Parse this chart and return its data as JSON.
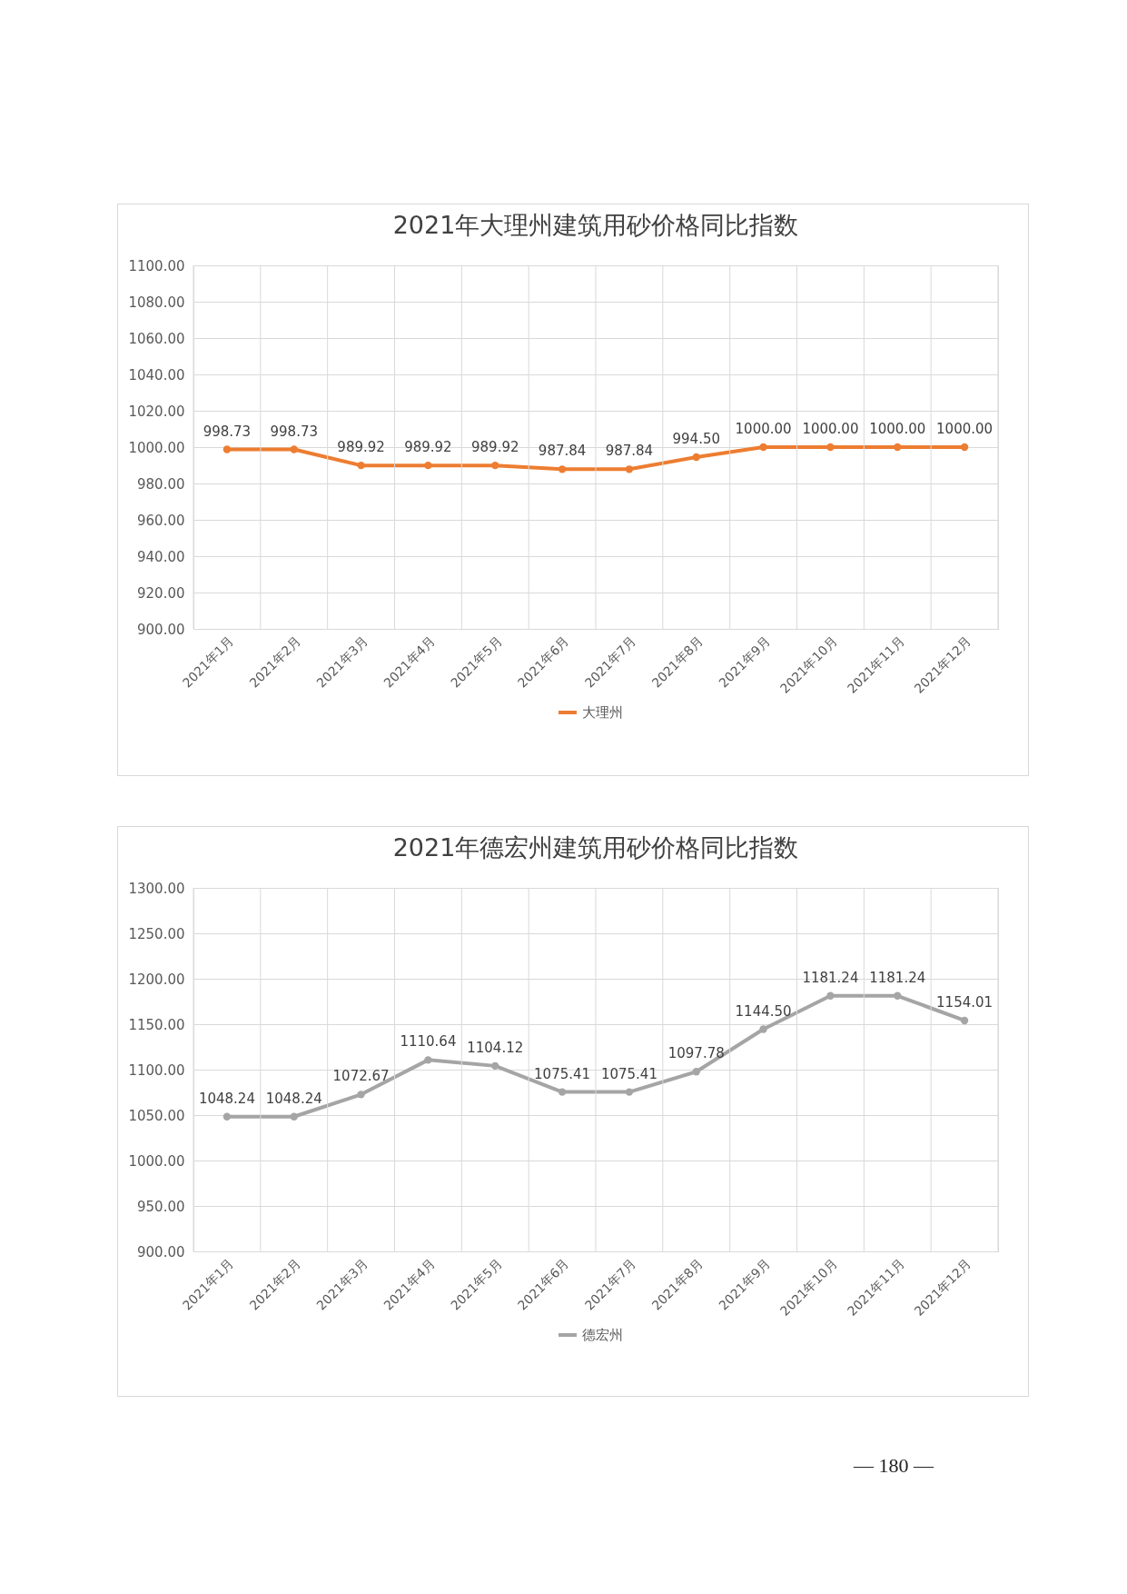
{
  "chart_data": [
    {
      "type": "line",
      "title": "2021年大理州建筑用砂价格同比指数",
      "categories": [
        "2021年1月",
        "2021年2月",
        "2021年3月",
        "2021年4月",
        "2021年5月",
        "2021年6月",
        "2021年7月",
        "2021年8月",
        "2021年9月",
        "2021年10月",
        "2021年11月",
        "2021年12月"
      ],
      "series": [
        {
          "name": "大理州",
          "color": "#ed7d31",
          "values": [
            998.73,
            998.73,
            989.92,
            989.92,
            989.92,
            987.84,
            987.84,
            994.5,
            1000,
            1000,
            1000,
            1000
          ],
          "value_labels": [
            "998.73",
            "998.73",
            "989.92",
            "989.92",
            "989.92",
            "987.84",
            "987.84",
            "994.50",
            "1000.00",
            "1000.00",
            "1000.00",
            "1000.00"
          ]
        }
      ],
      "ylim": [
        900,
        1100
      ],
      "yticks": [
        {
          "value": 900,
          "label": "900.00"
        },
        {
          "value": 920,
          "label": "920.00"
        },
        {
          "value": 940,
          "label": "940.00"
        },
        {
          "value": 960,
          "label": "960.00"
        },
        {
          "value": 980,
          "label": "980.00"
        },
        {
          "value": 1000,
          "label": "1000.00"
        },
        {
          "value": 1020,
          "label": "1020.00"
        },
        {
          "value": 1040,
          "label": "1040.00"
        },
        {
          "value": 1060,
          "label": "1060.00"
        },
        {
          "value": 1080,
          "label": "1080.00"
        },
        {
          "value": 1100,
          "label": "1100.00"
        }
      ],
      "grid": true,
      "legend": "bottom",
      "marker": "circle"
    },
    {
      "type": "line",
      "title": "2021年德宏州建筑用砂价格同比指数",
      "categories": [
        "2021年1月",
        "2021年2月",
        "2021年3月",
        "2021年4月",
        "2021年5月",
        "2021年6月",
        "2021年7月",
        "2021年8月",
        "2021年9月",
        "2021年10月",
        "2021年11月",
        "2021年12月"
      ],
      "series": [
        {
          "name": "德宏州",
          "color": "#a5a5a5",
          "values": [
            1048.24,
            1048.24,
            1072.67,
            1110.64,
            1104.12,
            1075.41,
            1075.41,
            1097.78,
            1144.5,
            1181.24,
            1181.24,
            1154.01
          ],
          "value_labels": [
            "1048.24",
            "1048.24",
            "1072.67",
            "1110.64",
            "1104.12",
            "1075.41",
            "1075.41",
            "1097.78",
            "1144.50",
            "1181.24",
            "1181.24",
            "1154.01"
          ]
        }
      ],
      "ylim": [
        900,
        1300
      ],
      "yticks": [
        {
          "value": 900,
          "label": "900.00"
        },
        {
          "value": 950,
          "label": "950.00"
        },
        {
          "value": 1000,
          "label": "1000.00"
        },
        {
          "value": 1050,
          "label": "1050.00"
        },
        {
          "value": 1100,
          "label": "1100.00"
        },
        {
          "value": 1150,
          "label": "1150.00"
        },
        {
          "value": 1200,
          "label": "1200.00"
        },
        {
          "value": 1250,
          "label": "1250.00"
        },
        {
          "value": 1300,
          "label": "1300.00"
        }
      ],
      "grid": true,
      "legend": "bottom",
      "marker": "circle",
      "annotations": [
        "— 180 —"
      ]
    }
  ]
}
